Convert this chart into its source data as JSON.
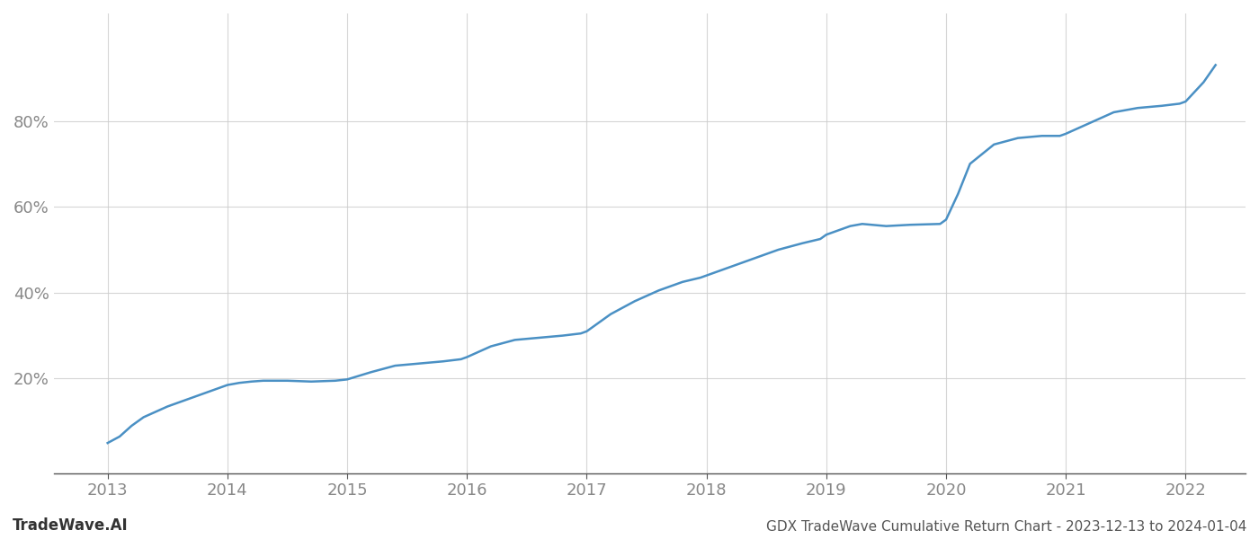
{
  "title": "GDX TradeWave Cumulative Return Chart - 2023-12-13 to 2024-01-04",
  "watermark": "TradeWave.AI",
  "line_color": "#4a90c4",
  "background_color": "#ffffff",
  "grid_color": "#cccccc",
  "x_years": [
    2013,
    2014,
    2015,
    2016,
    2017,
    2018,
    2019,
    2020,
    2021,
    2022
  ],
  "x_values": [
    2013.0,
    2013.1,
    2013.2,
    2013.3,
    2013.5,
    2013.7,
    2013.9,
    2014.0,
    2014.1,
    2014.2,
    2014.3,
    2014.5,
    2014.7,
    2014.9,
    2015.0,
    2015.2,
    2015.4,
    2015.6,
    2015.8,
    2015.95,
    2016.0,
    2016.2,
    2016.4,
    2016.6,
    2016.8,
    2016.95,
    2017.0,
    2017.2,
    2017.4,
    2017.6,
    2017.8,
    2017.95,
    2018.0,
    2018.2,
    2018.4,
    2018.6,
    2018.8,
    2018.95,
    2019.0,
    2019.1,
    2019.2,
    2019.3,
    2019.5,
    2019.7,
    2019.95,
    2020.0,
    2020.1,
    2020.2,
    2020.4,
    2020.6,
    2020.8,
    2020.95,
    2021.0,
    2021.2,
    2021.4,
    2021.6,
    2021.8,
    2021.95,
    2022.0,
    2022.15,
    2022.25
  ],
  "y_values": [
    5.0,
    6.5,
    9.0,
    11.0,
    13.5,
    15.5,
    17.5,
    18.5,
    19.0,
    19.3,
    19.5,
    19.5,
    19.3,
    19.5,
    19.8,
    21.5,
    23.0,
    23.5,
    24.0,
    24.5,
    25.0,
    27.5,
    29.0,
    29.5,
    30.0,
    30.5,
    31.0,
    35.0,
    38.0,
    40.5,
    42.5,
    43.5,
    44.0,
    46.0,
    48.0,
    50.0,
    51.5,
    52.5,
    53.5,
    54.5,
    55.5,
    56.0,
    55.5,
    55.8,
    56.0,
    57.0,
    63.0,
    70.0,
    74.5,
    76.0,
    76.5,
    76.5,
    77.0,
    79.5,
    82.0,
    83.0,
    83.5,
    84.0,
    84.5,
    89.0,
    93.0
  ],
  "ylim": [
    -2,
    105
  ],
  "yticks": [
    20,
    40,
    60,
    80
  ],
  "xlim": [
    2012.55,
    2022.5
  ],
  "title_fontsize": 11,
  "tick_fontsize": 13,
  "watermark_fontsize": 12,
  "tick_color": "#888888",
  "axis_color": "#555555",
  "title_color": "#555555"
}
